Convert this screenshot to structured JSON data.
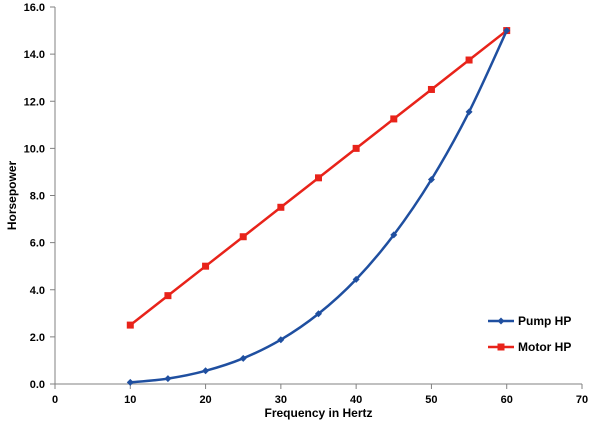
{
  "chart_data": {
    "type": "line",
    "title": "",
    "xlabel": "Frequency in Hertz",
    "ylabel": "Horsepower",
    "xlim": [
      0,
      70
    ],
    "ylim": [
      0,
      16
    ],
    "x_ticks": [
      "0",
      "10",
      "20",
      "30",
      "40",
      "50",
      "60",
      "70"
    ],
    "y_ticks": [
      "0.0",
      "2.0",
      "4.0",
      "6.0",
      "8.0",
      "10.0",
      "12.0",
      "14.0",
      "16.0"
    ],
    "grid": false,
    "legend_position": "bottom-right",
    "series": [
      {
        "name": "Pump HP",
        "color": "#1f4fa0",
        "marker": "diamond",
        "smooth": true,
        "x": [
          10,
          15,
          20,
          25,
          30,
          35,
          40,
          45,
          50,
          55,
          60
        ],
        "y": [
          0.07,
          0.23,
          0.56,
          1.09,
          1.88,
          2.98,
          4.44,
          6.33,
          8.68,
          11.55,
          15.0
        ]
      },
      {
        "name": "Motor HP",
        "color": "#e8231a",
        "marker": "square",
        "smooth": false,
        "x": [
          10,
          15,
          20,
          25,
          30,
          35,
          40,
          45,
          50,
          55,
          60
        ],
        "y": [
          2.5,
          3.75,
          5.0,
          6.25,
          7.5,
          8.75,
          10.0,
          11.25,
          12.5,
          13.75,
          15.0
        ]
      }
    ]
  }
}
